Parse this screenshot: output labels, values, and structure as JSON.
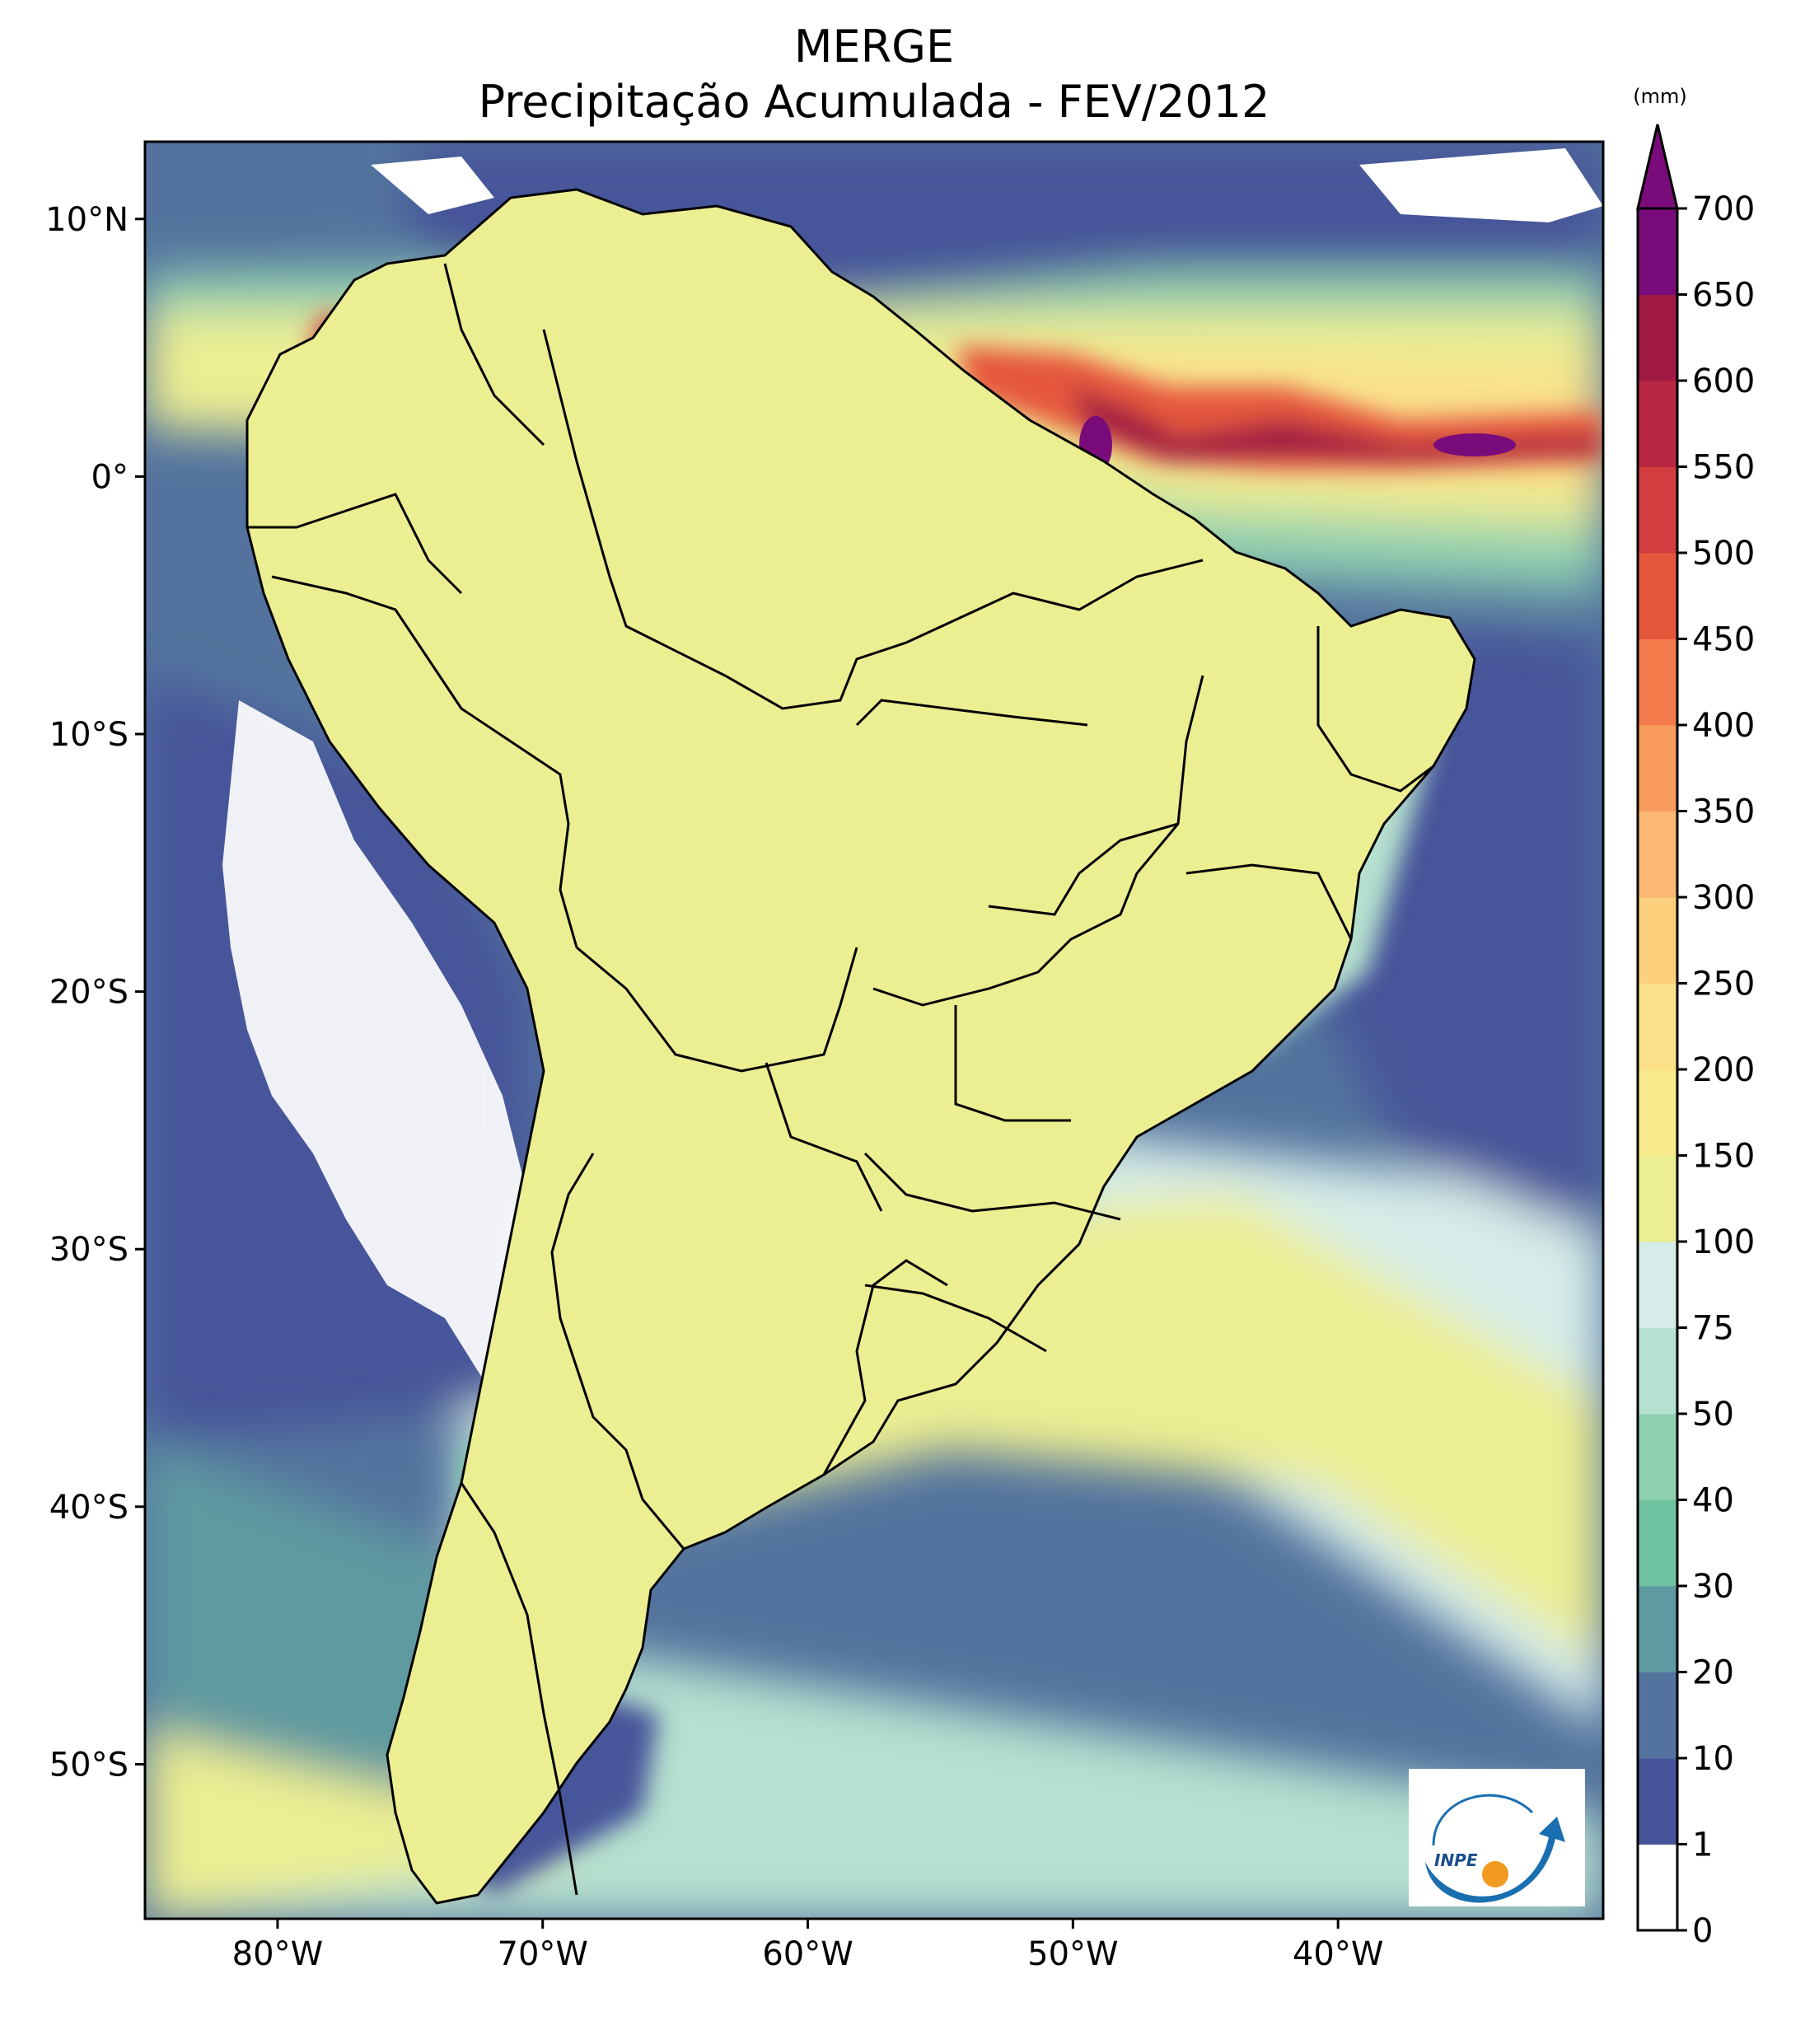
{
  "title": "MERGE",
  "subtitle": "Precipitação Acumulada - FEV/2012",
  "colorbar": {
    "unit": "(mm)",
    "levels": [
      "0",
      "1",
      "10",
      "20",
      "30",
      "40",
      "50",
      "75",
      "100",
      "150",
      "200",
      "250",
      "300",
      "350",
      "400",
      "450",
      "500",
      "550",
      "600",
      "650",
      "700"
    ],
    "colors": [
      "#ffffff",
      "#47549a",
      "#53739e",
      "#5e9aa0",
      "#6fc3a3",
      "#8fd0b0",
      "#b6e0cf",
      "#d6ece8",
      "#ecee92",
      "#f8e98b",
      "#fbe08a",
      "#fdd07e",
      "#fbb774",
      "#f89b5a",
      "#f47b4b",
      "#e5573d",
      "#d23d3f",
      "#b92842",
      "#a01a43",
      "#7a0b7a"
    ],
    "extend_color": "#7a0b7a"
  },
  "axes": {
    "lon_ticks": [
      "80°W",
      "70°W",
      "60°W",
      "50°W",
      "40°W"
    ],
    "lat_ticks": [
      "10°N",
      "0°",
      "10°S",
      "20°S",
      "30°S",
      "40°S",
      "50°S"
    ],
    "lon_range": [
      -85,
      -30
    ],
    "lat_range": [
      -56,
      13
    ]
  },
  "logo": {
    "text": "INPE"
  }
}
